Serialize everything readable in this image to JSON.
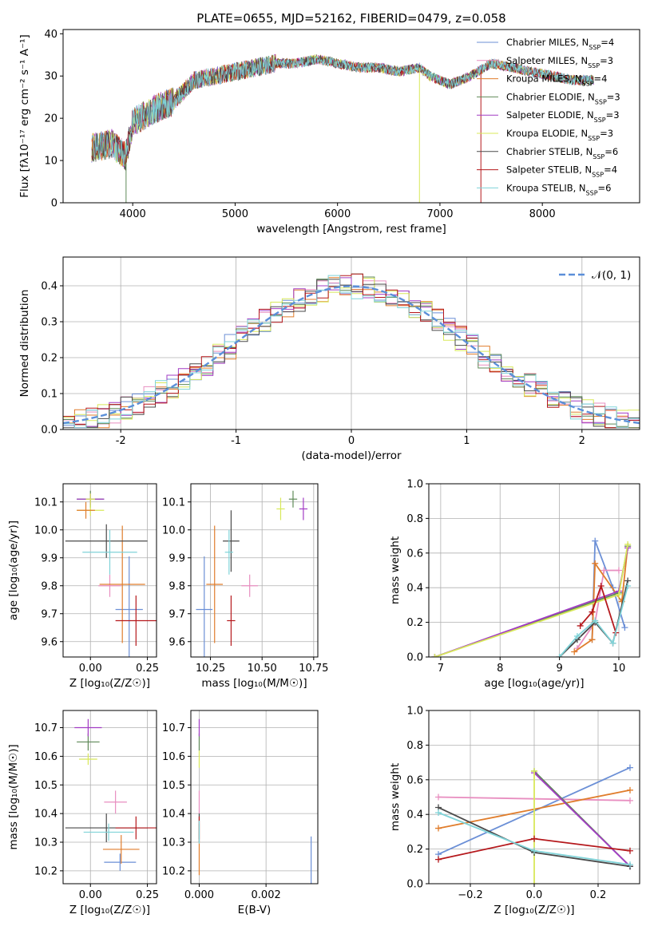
{
  "title": "PLATE=0655, MJD=52162, FIBERID=0479, z=0.058",
  "colors": {
    "Chabrier MILES": "#6b8fd6",
    "Salpeter MILES": "#e88ec0",
    "Kroupa MILES": "#e07d2c",
    "Chabrier ELODIE": "#5f8a58",
    "Salpeter ELODIE": "#a23cc4",
    "Kroupa ELODIE": "#d8e85a",
    "Chabrier STELIB": "#4a4a4a",
    "Salpeter STELIB": "#b5181c",
    "Kroupa STELIB": "#7fd3d8"
  },
  "chart_data": [
    {
      "id": "spectrum",
      "type": "line",
      "xlabel": "wavelength [Angstrom, rest frame]",
      "ylabel": "Flux [fλ10⁻¹⁷ erg cm⁻² s⁻¹ A⁻¹]",
      "xlim": [
        3320,
        8950
      ],
      "ylim": [
        0,
        41
      ],
      "xticks": [
        4000,
        5000,
        6000,
        7000,
        8000
      ],
      "yticks": [
        0,
        10,
        20,
        30,
        40
      ],
      "grid": false,
      "legend_position": "top-right",
      "legend": [
        {
          "label": "Chabrier MILES, N",
          "sub": "SSP",
          "tail": "=4"
        },
        {
          "label": "Salpeter MILES, N",
          "sub": "SSP",
          "tail": "=3"
        },
        {
          "label": "Kroupa MILES, N",
          "sub": "SSP",
          "tail": "=4"
        },
        {
          "label": "Chabrier ELODIE, N",
          "sub": "SSP",
          "tail": "=3"
        },
        {
          "label": "Salpeter ELODIE, N",
          "sub": "SSP",
          "tail": "=3"
        },
        {
          "label": "Kroupa ELODIE, N",
          "sub": "SSP",
          "tail": "=3"
        },
        {
          "label": "Chabrier STELIB, N",
          "sub": "SSP",
          "tail": "=6"
        },
        {
          "label": "Salpeter STELIB, N",
          "sub": "SSP",
          "tail": "=4"
        },
        {
          "label": "Kroupa STELIB, N",
          "sub": "SSP",
          "tail": "=6"
        }
      ],
      "continuum": [
        [
          3600,
          13
        ],
        [
          3800,
          14
        ],
        [
          3930,
          11
        ],
        [
          4000,
          19
        ],
        [
          4200,
          22
        ],
        [
          4400,
          24
        ],
        [
          4600,
          29
        ],
        [
          4800,
          30
        ],
        [
          5000,
          31
        ],
        [
          5200,
          32
        ],
        [
          5400,
          33
        ],
        [
          5600,
          33
        ],
        [
          5800,
          34
        ],
        [
          6000,
          33
        ],
        [
          6200,
          32
        ],
        [
          6400,
          32
        ],
        [
          6600,
          31
        ],
        [
          6800,
          32
        ],
        [
          6900,
          30
        ],
        [
          7100,
          28
        ],
        [
          7300,
          30
        ],
        [
          7500,
          33
        ],
        [
          7700,
          32
        ],
        [
          7900,
          31
        ],
        [
          8100,
          30
        ],
        [
          8300,
          29
        ],
        [
          8500,
          29
        ]
      ],
      "dips": [
        [
          3935,
          0
        ],
        [
          6800,
          0
        ],
        [
          7400,
          0
        ]
      ]
    },
    {
      "id": "residuals",
      "type": "histogram",
      "xlabel": "(data-model)/error",
      "ylabel": "Normed distribution",
      "xlim": [
        -2.5,
        2.5
      ],
      "ylim": [
        0,
        0.48
      ],
      "xticks": [
        -2,
        -1,
        0,
        1,
        2
      ],
      "yticks": [
        0.0,
        0.1,
        0.2,
        0.3,
        0.4
      ],
      "grid": true,
      "legend_position": "top-right",
      "reference_label": "𝒩(0, 1)"
    },
    {
      "id": "age_vs_Z",
      "type": "scatter",
      "xlabel": "Z [log₁₀(Z/Z☉)]",
      "ylabel": "age  [log₁₀(age/yr)]",
      "xlim": [
        -0.12,
        0.29
      ],
      "ylim": [
        9.545,
        10.165
      ],
      "xticks": [
        0.0,
        0.25
      ],
      "xtick_labels": [
        "0.00",
        "0.25"
      ],
      "yticks": [
        9.6,
        9.7,
        9.8,
        9.9,
        10.0,
        10.1
      ],
      "grid": true,
      "points": [
        {
          "s": "Chabrier MILES",
          "x": 0.17,
          "y": 9.715,
          "ex": 0.06,
          "ey": 0.19
        },
        {
          "s": "Salpeter MILES",
          "x": 0.085,
          "y": 9.8,
          "ex": 0.05,
          "ey": 0.04
        },
        {
          "s": "Kroupa MILES",
          "x": 0.14,
          "y": 9.805,
          "ex": 0.1,
          "ey": 0.21
        },
        {
          "s": "Chabrier ELODIE",
          "x": 0.0,
          "y": 10.11,
          "ex": 0.06,
          "ey": 0.03
        },
        {
          "s": "Salpeter ELODIE",
          "x": 0.0,
          "y": 10.11,
          "ex": 0.06,
          "ey": 0.02
        },
        {
          "s": "Kroupa ELODIE",
          "x": 0.0,
          "y": 10.11,
          "ex": 0.02,
          "ey": 0.02
        },
        {
          "s": "Chabrier STELIB",
          "x": 0.07,
          "y": 9.96,
          "ex": 0.18,
          "ey": 0.06
        },
        {
          "s": "Salpeter STELIB",
          "x": 0.2,
          "y": 9.675,
          "ex": 0.09,
          "ey": 0.09
        },
        {
          "s": "Kroupa STELIB",
          "x": 0.085,
          "y": 9.92,
          "ex": 0.12,
          "ey": 0.08
        },
        {
          "s": "Kroupa ELODIE",
          "x": 0.0,
          "y": 10.07,
          "ex": 0.06,
          "ey": 0.02
        },
        {
          "s": "Kroupa MILES",
          "x": -0.02,
          "y": 10.07,
          "ex": 0.04,
          "ey": 0.03
        }
      ]
    },
    {
      "id": "age_vs_mass",
      "type": "scatter",
      "xlabel": "mass [log₁₀(M/M☉)]",
      "xlim": [
        10.155,
        10.77
      ],
      "ylim": [
        9.545,
        10.165
      ],
      "xticks": [
        10.25,
        10.5,
        10.75
      ],
      "xtick_labels": [
        "10.25",
        "10.50",
        "10.75"
      ],
      "yticks": [
        9.6,
        9.7,
        9.8,
        9.9,
        10.0,
        10.1
      ],
      "grid": true,
      "points": [
        {
          "s": "Chabrier MILES",
          "x": 10.22,
          "y": 9.715,
          "ex": 0.04,
          "ey": 0.19
        },
        {
          "s": "Salpeter MILES",
          "x": 10.44,
          "y": 9.8,
          "ex": 0.04,
          "ey": 0.04
        },
        {
          "s": "Kroupa MILES",
          "x": 10.27,
          "y": 9.805,
          "ex": 0.04,
          "ey": 0.21
        },
        {
          "s": "Chabrier ELODIE",
          "x": 10.65,
          "y": 10.11,
          "ex": 0.02,
          "ey": 0.03
        },
        {
          "s": "Salpeter ELODIE",
          "x": 10.7,
          "y": 10.075,
          "ex": 0.02,
          "ey": 0.04
        },
        {
          "s": "Kroupa ELODIE",
          "x": 10.59,
          "y": 10.075,
          "ex": 0.02,
          "ey": 0.04
        },
        {
          "s": "Chabrier STELIB",
          "x": 10.35,
          "y": 9.96,
          "ex": 0.04,
          "ey": 0.11
        },
        {
          "s": "Salpeter STELIB",
          "x": 10.35,
          "y": 9.675,
          "ex": 0.02,
          "ey": 0.09
        },
        {
          "s": "Kroupa STELIB",
          "x": 10.34,
          "y": 9.92,
          "ex": 0.02,
          "ey": 0.08
        }
      ]
    },
    {
      "id": "massweight_vs_age",
      "type": "line",
      "xlabel": "age  [log₁₀(age/yr)]",
      "ylabel": "mass weight",
      "xlim": [
        6.8,
        10.35
      ],
      "ylim": [
        0,
        1.0
      ],
      "xticks": [
        7,
        8,
        9,
        10
      ],
      "yticks": [
        0.0,
        0.2,
        0.4,
        0.6,
        0.8,
        1.0
      ],
      "ytick_labels": [
        "0.0",
        "0.2",
        "0.4",
        "0.6",
        "0.8",
        "1.0"
      ],
      "grid": true,
      "series": [
        {
          "s": "Chabrier MILES",
          "x": [
            9.55,
            9.6,
            9.9,
            10.1
          ],
          "y": [
            0.1,
            0.67,
            0.4,
            0.17
          ]
        },
        {
          "s": "Salpeter MILES",
          "x": [
            9.3,
            9.6,
            9.75,
            10.0
          ],
          "y": [
            0.05,
            0.2,
            0.5,
            0.5
          ]
        },
        {
          "s": "Kroupa MILES",
          "x": [
            9.25,
            9.55,
            9.6,
            10.05,
            10.15
          ],
          "y": [
            0.03,
            0.1,
            0.54,
            0.32,
            0.64
          ]
        },
        {
          "s": "Chabrier ELODIE",
          "x": [
            6.9,
            10.0,
            10.15
          ],
          "y": [
            0.0,
            0.37,
            0.64
          ]
        },
        {
          "s": "Salpeter ELODIE",
          "x": [
            6.9,
            10.0,
            10.15
          ],
          "y": [
            0.0,
            0.38,
            0.63
          ]
        },
        {
          "s": "Kroupa ELODIE",
          "x": [
            6.9,
            10.0,
            10.15
          ],
          "y": [
            0.0,
            0.36,
            0.65
          ]
        },
        {
          "s": "Chabrier STELIB",
          "x": [
            9.0,
            9.3,
            9.6,
            9.9,
            10.15
          ],
          "y": [
            0.0,
            0.1,
            0.2,
            0.08,
            0.44
          ]
        },
        {
          "s": "Salpeter STELIB",
          "x": [
            9.35,
            9.55,
            9.7,
            9.95
          ],
          "y": [
            0.18,
            0.26,
            0.41,
            0.14
          ]
        },
        {
          "s": "Kroupa STELIB",
          "x": [
            9.0,
            9.3,
            9.6,
            9.9,
            10.15
          ],
          "y": [
            0.0,
            0.12,
            0.21,
            0.08,
            0.41
          ]
        }
      ]
    },
    {
      "id": "mass_vs_Z",
      "type": "scatter",
      "xlabel": "Z [log₁₀(Z/Z☉)]",
      "ylabel": "mass [log₁₀(M/M☉)]",
      "xlim": [
        -0.12,
        0.29
      ],
      "ylim": [
        10.155,
        10.76
      ],
      "xticks": [
        0.0,
        0.25
      ],
      "xtick_labels": [
        "0.00",
        "0.25"
      ],
      "yticks": [
        10.2,
        10.3,
        10.4,
        10.5,
        10.6,
        10.7
      ],
      "grid": true,
      "points": [
        {
          "s": "Chabrier MILES",
          "x": 0.13,
          "y": 10.23,
          "ex": 0.07,
          "ey": 0.03
        },
        {
          "s": "Salpeter MILES",
          "x": 0.11,
          "y": 10.44,
          "ex": 0.05,
          "ey": 0.04
        },
        {
          "s": "Kroupa MILES",
          "x": 0.135,
          "y": 10.275,
          "ex": 0.08,
          "ey": 0.05
        },
        {
          "s": "Chabrier ELODIE",
          "x": -0.01,
          "y": 10.65,
          "ex": 0.05,
          "ey": 0.03
        },
        {
          "s": "Salpeter ELODIE",
          "x": -0.01,
          "y": 10.7,
          "ex": 0.06,
          "ey": 0.03
        },
        {
          "s": "Kroupa ELODIE",
          "x": -0.01,
          "y": 10.59,
          "ex": 0.04,
          "ey": 0.02
        },
        {
          "s": "Chabrier STELIB",
          "x": 0.07,
          "y": 10.35,
          "ex": 0.18,
          "ey": 0.05
        },
        {
          "s": "Salpeter STELIB",
          "x": 0.2,
          "y": 10.35,
          "ex": 0.09,
          "ey": 0.04
        },
        {
          "s": "Kroupa STELIB",
          "x": 0.08,
          "y": 10.335,
          "ex": 0.11,
          "ey": 0.03
        }
      ]
    },
    {
      "id": "mass_vs_ebv",
      "type": "scatter",
      "xlabel": "E(B-V)",
      "xlim": [
        -0.00025,
        0.00355
      ],
      "ylim": [
        10.155,
        10.76
      ],
      "xticks": [
        0.0,
        0.002
      ],
      "xtick_labels": [
        "0.000",
        "0.002"
      ],
      "yticks": [
        10.2,
        10.3,
        10.4,
        10.5,
        10.6,
        10.7
      ],
      "grid": true,
      "points": [
        {
          "s": "Chabrier MILES",
          "x": 0.00335,
          "y": 10.23,
          "ex": 0.0,
          "ey": 0.09
        },
        {
          "s": "Salpeter MILES",
          "x": 0.0,
          "y": 10.44,
          "ex": 0.0,
          "ey": 0.04
        },
        {
          "s": "Kroupa MILES",
          "x": 0.0,
          "y": 10.275,
          "ex": 0.0,
          "ey": 0.09
        },
        {
          "s": "Chabrier ELODIE",
          "x": 0.0,
          "y": 10.65,
          "ex": 0.0,
          "ey": 0.03
        },
        {
          "s": "Salpeter ELODIE",
          "x": 0.0,
          "y": 10.7,
          "ex": 0.0,
          "ey": 0.03
        },
        {
          "s": "Kroupa ELODIE",
          "x": 0.0,
          "y": 10.59,
          "ex": 0.0,
          "ey": 0.03
        },
        {
          "s": "Chabrier STELIB",
          "x": 0.0,
          "y": 10.35,
          "ex": 0.0,
          "ey": 0.05
        },
        {
          "s": "Salpeter STELIB",
          "x": 0.0,
          "y": 10.35,
          "ex": 0.0,
          "ey": 0.04
        },
        {
          "s": "Kroupa STELIB",
          "x": 0.0,
          "y": 10.335,
          "ex": 0.0,
          "ey": 0.04
        }
      ]
    },
    {
      "id": "massweight_vs_Z",
      "type": "line",
      "xlabel": "Z [log₁₀(Z/Z☉)]",
      "ylabel": "mass weight",
      "xlim": [
        -0.33,
        0.33
      ],
      "ylim": [
        0,
        1.0
      ],
      "xticks": [
        -0.2,
        0.0,
        0.2
      ],
      "xtick_labels": [
        "−0.2",
        "0.0",
        "0.2"
      ],
      "yticks": [
        0.0,
        0.2,
        0.4,
        0.6,
        0.8,
        1.0
      ],
      "ytick_labels": [
        "0.0",
        "0.2",
        "0.4",
        "0.6",
        "0.8",
        "1.0"
      ],
      "grid": true,
      "series": [
        {
          "s": "Chabrier MILES",
          "x": [
            -0.3,
            0.3
          ],
          "y": [
            0.17,
            0.67
          ]
        },
        {
          "s": "Salpeter MILES",
          "x": [
            -0.3,
            0.3
          ],
          "y": [
            0.5,
            0.48
          ]
        },
        {
          "s": "Kroupa MILES",
          "x": [
            -0.3,
            0.3
          ],
          "y": [
            0.32,
            0.54
          ]
        },
        {
          "s": "Chabrier ELODIE",
          "x": [
            0.0,
            0.3
          ],
          "y": [
            0.65,
            0.1
          ]
        },
        {
          "s": "Salpeter ELODIE",
          "x": [
            0.0,
            0.3
          ],
          "y": [
            0.64,
            0.1
          ]
        },
        {
          "s": "Kroupa ELODIE",
          "x": [
            0.0,
            0.0
          ],
          "y": [
            0.0,
            0.65
          ]
        },
        {
          "s": "Chabrier STELIB",
          "x": [
            -0.3,
            0.0,
            0.3
          ],
          "y": [
            0.44,
            0.18,
            0.1
          ]
        },
        {
          "s": "Salpeter STELIB",
          "x": [
            -0.3,
            0.0,
            0.3
          ],
          "y": [
            0.14,
            0.26,
            0.19
          ]
        },
        {
          "s": "Kroupa STELIB",
          "x": [
            -0.3,
            0.0,
            0.3
          ],
          "y": [
            0.41,
            0.19,
            0.11
          ]
        }
      ]
    }
  ]
}
